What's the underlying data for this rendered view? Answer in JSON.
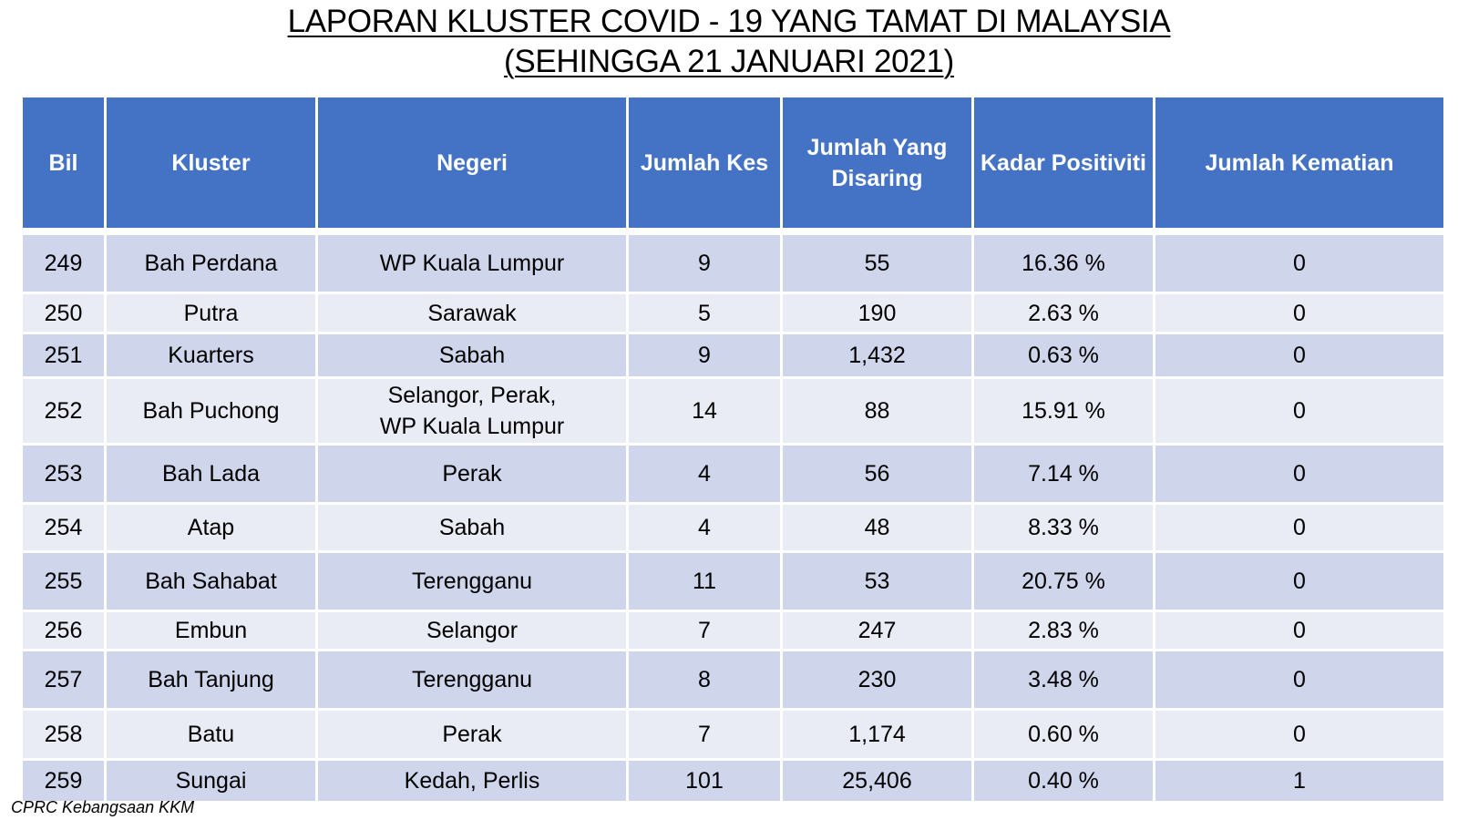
{
  "title": {
    "line1": "LAPORAN KLUSTER COVID - 19 YANG TAMAT DI MALAYSIA",
    "line2": "(SEHINGGA 21 JANUARI 2021)"
  },
  "table": {
    "headers": [
      "Bil",
      "Kluster",
      "Negeri",
      "Jumlah Kes",
      "Jumlah Yang\nDisaring",
      "Kadar Positiviti",
      "Jumlah Kematian"
    ],
    "rows": [
      [
        "249",
        "Bah Perdana",
        "WP Kuala Lumpur",
        "9",
        "55",
        "16.36 %",
        "0"
      ],
      [
        "250",
        "Putra",
        "Sarawak",
        "5",
        "190",
        "2.63 %",
        "0"
      ],
      [
        "251",
        "Kuarters",
        "Sabah",
        "9",
        "1,432",
        "0.63 %",
        "0"
      ],
      [
        "252",
        "Bah Puchong",
        "Selangor, Perak,\nWP Kuala Lumpur",
        "14",
        "88",
        "15.91 %",
        "0"
      ],
      [
        "253",
        "Bah Lada",
        "Perak",
        "4",
        "56",
        "7.14 %",
        "0"
      ],
      [
        "254",
        "Atap",
        "Sabah",
        "4",
        "48",
        "8.33 %",
        "0"
      ],
      [
        "255",
        "Bah Sahabat",
        "Terengganu",
        "11",
        "53",
        "20.75 %",
        "0"
      ],
      [
        "256",
        "Embun",
        "Selangor",
        "7",
        "247",
        "2.83 %",
        "0"
      ],
      [
        "257",
        "Bah Tanjung",
        "Terengganu",
        "8",
        "230",
        "3.48 %",
        "0"
      ],
      [
        "258",
        "Batu",
        "Perak",
        "7",
        "1,174",
        "0.60 %",
        "0"
      ],
      [
        "259",
        "Sungai",
        "Kedah, Perlis",
        "101",
        "25,406",
        "0.40 %",
        "1"
      ]
    ]
  },
  "footnote": "CPRC Kebangsaan KKM"
}
